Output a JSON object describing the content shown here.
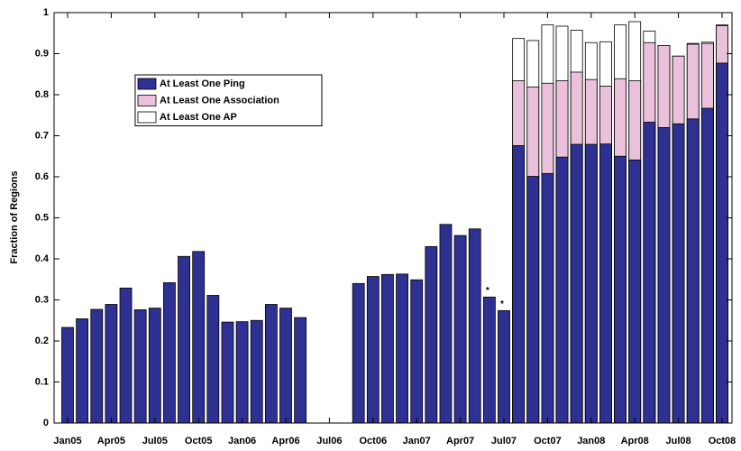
{
  "chart_data": {
    "type": "bar",
    "mode": "overlay",
    "y_label": "Fraction of Regions",
    "categories": [
      "Jan05",
      null,
      null,
      "Apr05",
      null,
      null,
      "Jul05",
      null,
      null,
      "Oct05",
      null,
      null,
      "Jan06",
      null,
      null,
      "Apr06",
      null,
      null,
      "Jul06",
      null,
      null,
      "Oct06",
      null,
      null,
      "Jan07",
      null,
      null,
      "Apr07",
      null,
      null,
      "Jul07",
      null,
      null,
      "Oct07",
      null,
      null,
      "Jan08",
      null,
      null,
      "Apr08",
      null,
      null,
      "Jul08",
      null,
      null,
      "Oct08"
    ],
    "series": [
      {
        "name": "At Least One Ping",
        "color": "#2e3192",
        "values": [
          0.233,
          0.254,
          0.277,
          0.289,
          0.329,
          0.276,
          0.28,
          0.342,
          0.406,
          0.418,
          0.311,
          0.246,
          0.247,
          0.25,
          0.289,
          0.28,
          0.257,
          null,
          null,
          null,
          0.34,
          0.357,
          0.362,
          0.363,
          0.349,
          0.43,
          0.484,
          0.457,
          0.473,
          0.307,
          0.274,
          0.676,
          0.601,
          0.608,
          0.648,
          0.679,
          0.679,
          0.68,
          0.65,
          0.641,
          0.733,
          0.72,
          0.729,
          0.741,
          0.767,
          0.877
        ],
        "annotations": [
          null,
          null,
          null,
          null,
          null,
          null,
          null,
          null,
          null,
          null,
          null,
          null,
          null,
          null,
          null,
          null,
          null,
          null,
          null,
          null,
          null,
          null,
          null,
          null,
          null,
          null,
          null,
          null,
          null,
          "*",
          "*",
          null,
          null,
          null,
          null,
          null,
          null,
          null,
          null,
          null,
          null,
          null,
          null,
          null,
          null,
          null
        ]
      },
      {
        "name": "At Least One Association",
        "color": "#ebc0da",
        "values": [
          null,
          null,
          null,
          null,
          null,
          null,
          null,
          null,
          null,
          null,
          null,
          null,
          null,
          null,
          null,
          null,
          null,
          null,
          null,
          null,
          null,
          null,
          null,
          null,
          null,
          null,
          null,
          null,
          null,
          null,
          null,
          0.834,
          0.819,
          0.828,
          0.834,
          0.855,
          0.837,
          0.821,
          0.839,
          0.834,
          0.927,
          0.92,
          0.894,
          0.923,
          0.925,
          0.968
        ]
      },
      {
        "name": "At Least One AP",
        "color": "#ffffff",
        "values": [
          null,
          null,
          null,
          null,
          null,
          null,
          null,
          null,
          null,
          null,
          null,
          null,
          null,
          null,
          null,
          null,
          null,
          null,
          null,
          null,
          null,
          null,
          null,
          null,
          null,
          null,
          null,
          null,
          null,
          null,
          null,
          0.937,
          0.932,
          0.97,
          0.967,
          0.957,
          0.927,
          0.929,
          0.97,
          0.978,
          0.955,
          0.92,
          0.894,
          0.925,
          0.928,
          0.97
        ]
      }
    ],
    "ylim": [
      0,
      1
    ],
    "yticks": [
      0,
      0.1,
      0.2,
      0.3,
      0.4,
      0.5,
      0.6,
      0.7,
      0.8,
      0.9,
      1
    ],
    "grid": false,
    "legend": "upper left"
  }
}
